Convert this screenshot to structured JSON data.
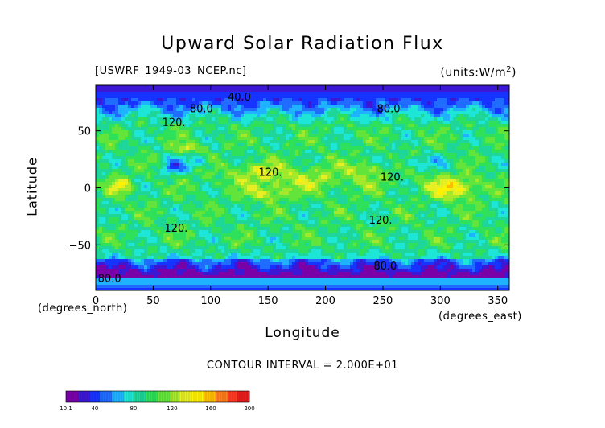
{
  "chart_data": {
    "type": "heatmap",
    "title": "Upward Solar Radiation Flux",
    "subtitle_left": "[USWRF_1949-03_NCEP.nc]",
    "subtitle_right": "(units:W/m^2)",
    "xlabel": "Longitude",
    "ylabel": "Latitude",
    "x_unit_note": "(degrees_east)",
    "y_unit_note": "(degrees_north)",
    "xlim": [
      0,
      360
    ],
    "ylim": [
      -90,
      90
    ],
    "x_ticks": [
      0,
      50,
      100,
      150,
      200,
      250,
      300,
      350
    ],
    "y_ticks": [
      50,
      0,
      -50
    ],
    "contour_interval_text": "CONTOUR INTERVAL = 2.000E+01",
    "contour_labels": [
      {
        "text": "40.0",
        "x": 125,
        "y": 80
      },
      {
        "text": "80.0",
        "x": 92,
        "y": 70
      },
      {
        "text": "80.0",
        "x": 255,
        "y": 70
      },
      {
        "text": "120.",
        "x": 68,
        "y": 58
      },
      {
        "text": "120.",
        "x": 152,
        "y": 14
      },
      {
        "text": "120.",
        "x": 258,
        "y": 10
      },
      {
        "text": "120.",
        "x": 248,
        "y": -28
      },
      {
        "text": "120.",
        "x": 70,
        "y": -35
      },
      {
        "text": "80.0",
        "x": 252,
        "y": -68
      },
      {
        "text": "80.0",
        "x": 12,
        "y": -79
      }
    ],
    "colorbar": {
      "min": 10.1,
      "max": 200,
      "tick_labels": [
        "10.1",
        "40",
        "80",
        "120",
        "160",
        "200"
      ],
      "tick_values": [
        10.1,
        40,
        80,
        120,
        160,
        200
      ],
      "colors": [
        "#7a00a8",
        "#3c18d4",
        "#1633ff",
        "#1f6cff",
        "#1fb2ff",
        "#1ee6d6",
        "#1ed69a",
        "#2ee05a",
        "#62e43a",
        "#a4e82c",
        "#e6ee24",
        "#fff200",
        "#ffbf00",
        "#ff7d1e",
        "#ff3a22",
        "#e81c1c",
        "#ffc2c8"
      ]
    }
  }
}
